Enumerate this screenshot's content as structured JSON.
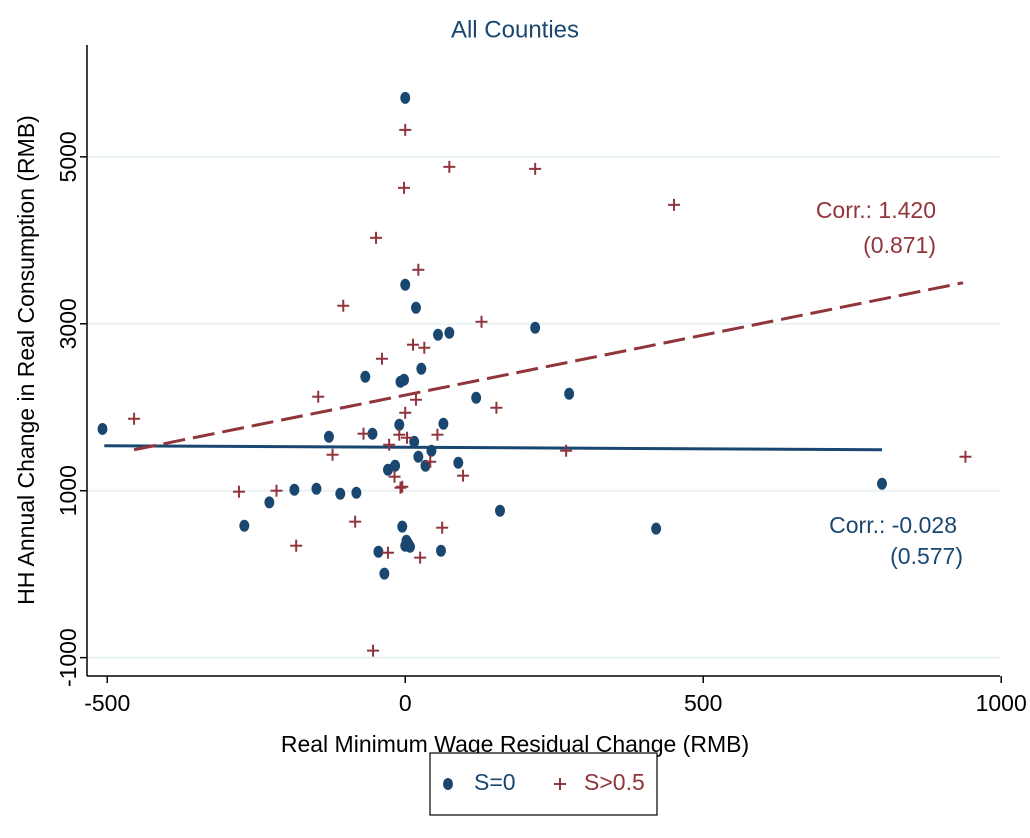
{
  "chart_data": {
    "type": "scatter",
    "title": "All Counties",
    "x_label": "Real Minimum Wage Residual Change (RMB)",
    "y_label": "HH Annual Change in Real Consumption (RMB)",
    "xlim": [
      -534,
      998
    ],
    "ylim": [
      -1220,
      6340
    ],
    "xticks": [
      -500,
      0,
      500,
      1000
    ],
    "yticks": [
      -1000,
      1000,
      3000,
      5000
    ],
    "grid": true,
    "legend_position": "bottom",
    "series": [
      {
        "name": "S=0",
        "color": "#1a476f",
        "marker": "dot",
        "x": [
          -508,
          -270,
          -228,
          -186,
          -149,
          -128,
          -109,
          -82,
          -67,
          -55,
          -45,
          -35,
          -29,
          -17,
          -10,
          -8,
          -2,
          0,
          0,
          -5,
          2,
          5,
          0,
          8,
          15,
          18,
          22,
          27,
          34,
          44,
          55,
          60,
          64,
          74,
          89,
          119,
          159,
          218,
          275,
          421,
          800
        ],
        "y": [
          1740,
          580,
          860,
          1012,
          1024,
          1647,
          964,
          976,
          2365,
          1683,
          269,
          6,
          1251,
          1299,
          1790,
          2305,
          2329,
          5707,
          3467,
          569,
          401,
          365,
          341,
          329,
          1587,
          3192,
          1407,
          2461,
          1299,
          1479,
          2868,
          281,
          1802,
          2892,
          1335,
          2114,
          760,
          2952,
          2162,
          545,
          1084
        ],
        "fit": {
          "x": [
            -505,
            800
          ],
          "y": [
            1539,
            1491
          ],
          "dash": false
        },
        "annotation": [
          "Corr.: -0.028",
          "(0.577)"
        ]
      },
      {
        "name": "S>0.5",
        "color": "#90353b",
        "marker": "cross",
        "x": [
          -455,
          -279,
          -216,
          -183,
          -146,
          -122,
          -104,
          -84,
          -70,
          -54,
          -49,
          -39,
          -29,
          -27,
          -18,
          -8,
          -10,
          -5,
          0,
          -2,
          0,
          3,
          13,
          18,
          22,
          25,
          32,
          42,
          54,
          62,
          74,
          97,
          128,
          153,
          218,
          270,
          451,
          940
        ],
        "y": [
          1862,
          988,
          1000,
          341,
          2126,
          1431,
          3216,
          629,
          1683,
          -916,
          4030,
          2581,
          257,
          1551,
          1168,
          1036,
          1671,
          1048,
          5323,
          4629,
          1934,
          1635,
          2749,
          2090,
          3647,
          198,
          2713,
          1347,
          1671,
          557,
          4880,
          1180,
          3024,
          1994,
          4856,
          1479,
          4425,
          1407
        ],
        "fit": {
          "x": [
            -455,
            936
          ],
          "y": [
            1491,
            3491
          ],
          "dash": true
        },
        "annotation": [
          "Corr.: 1.420",
          "(0.871)"
        ]
      }
    ]
  }
}
